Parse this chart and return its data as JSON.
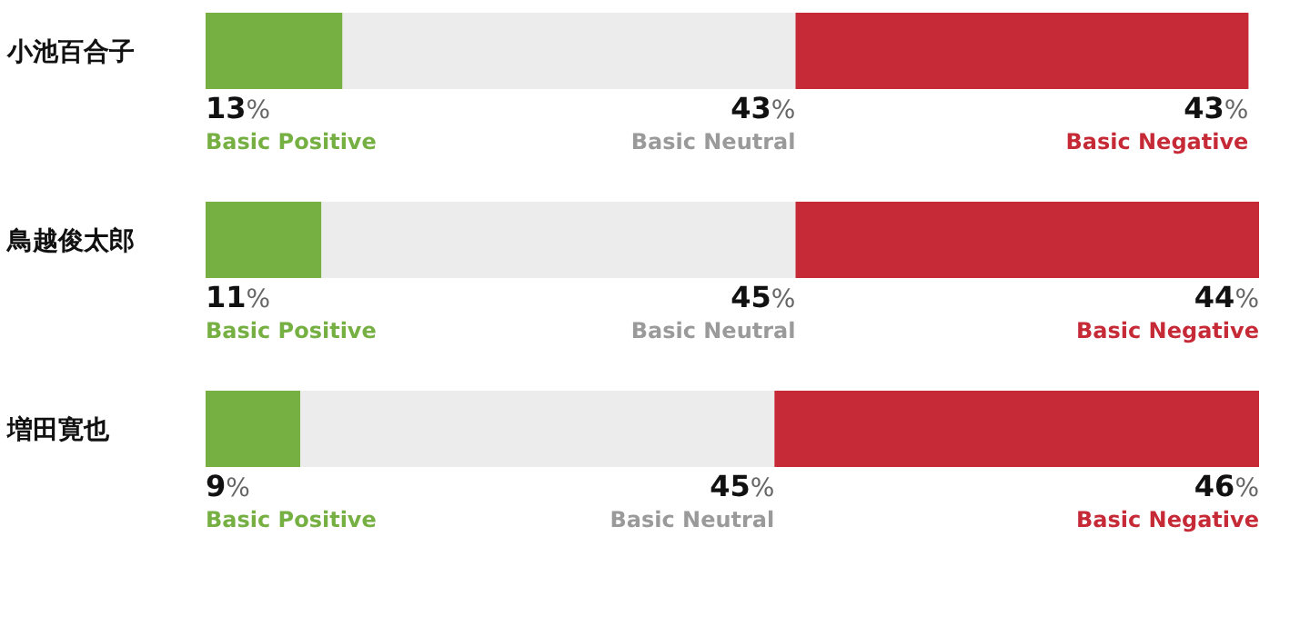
{
  "chart_data": {
    "type": "bar",
    "orientation": "horizontal",
    "stacked": true,
    "categories": [
      "小池百合子",
      "鳥越俊太郎",
      "増田寛也"
    ],
    "series": [
      {
        "name": "Basic Positive",
        "color": "#76b043",
        "values": [
          13,
          11,
          9
        ],
        "value_labels": [
          "13%",
          "11%",
          "9%"
        ]
      },
      {
        "name": "Basic Neutral",
        "color": "#ececec",
        "values": [
          43,
          45,
          45
        ],
        "value_labels": [
          "43%",
          "45%",
          "45%"
        ]
      },
      {
        "name": "Basic Negative",
        "color": "#c62a36",
        "values": [
          43,
          44,
          46
        ],
        "value_labels": [
          "43%",
          "44%",
          "46%"
        ]
      }
    ],
    "legend": false
  }
}
